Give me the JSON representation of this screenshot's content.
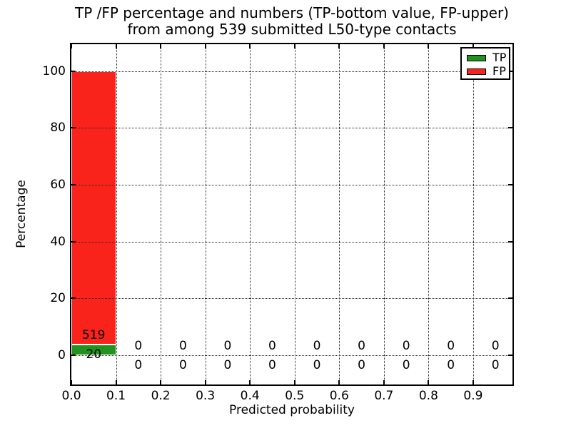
{
  "chart_data": {
    "type": "bar",
    "stacked": true,
    "title_line1": "TP /FP percentage and numbers (TP-bottom value, FP-upper)",
    "title_line2": "from among 539 submitted L50-type contacts",
    "xlabel": "Predicted probability",
    "ylabel": "Percentage",
    "total_contacts": 539,
    "bins": {
      "start": 0.0,
      "width": 0.1,
      "count": 10
    },
    "categories": [
      "0.0-0.1",
      "0.1-0.2",
      "0.2-0.3",
      "0.3-0.4",
      "0.4-0.5",
      "0.5-0.6",
      "0.6-0.7",
      "0.7-0.8",
      "0.8-0.9",
      "0.9-1.0"
    ],
    "series": [
      {
        "name": "TP",
        "color": "#22921e",
        "counts": [
          20,
          0,
          0,
          0,
          0,
          0,
          0,
          0,
          0,
          0
        ]
      },
      {
        "name": "FP",
        "color": "#fa231c",
        "counts": [
          519,
          0,
          0,
          0,
          0,
          0,
          0,
          0,
          0,
          0
        ]
      }
    ],
    "x_tick_labels": [
      "0.0",
      "0.1",
      "0.2",
      "0.3",
      "0.4",
      "0.5",
      "0.6",
      "0.7",
      "0.8",
      "0.9"
    ],
    "y_tick_values": [
      0,
      20,
      40,
      60,
      80,
      100
    ],
    "xlim": [
      0,
      0.988
    ],
    "ylim": [
      -10.3,
      109.5
    ],
    "grid": true,
    "grid_style": "dotted",
    "legend": {
      "position": "upper-right",
      "entries": [
        "TP",
        "FP"
      ]
    }
  }
}
